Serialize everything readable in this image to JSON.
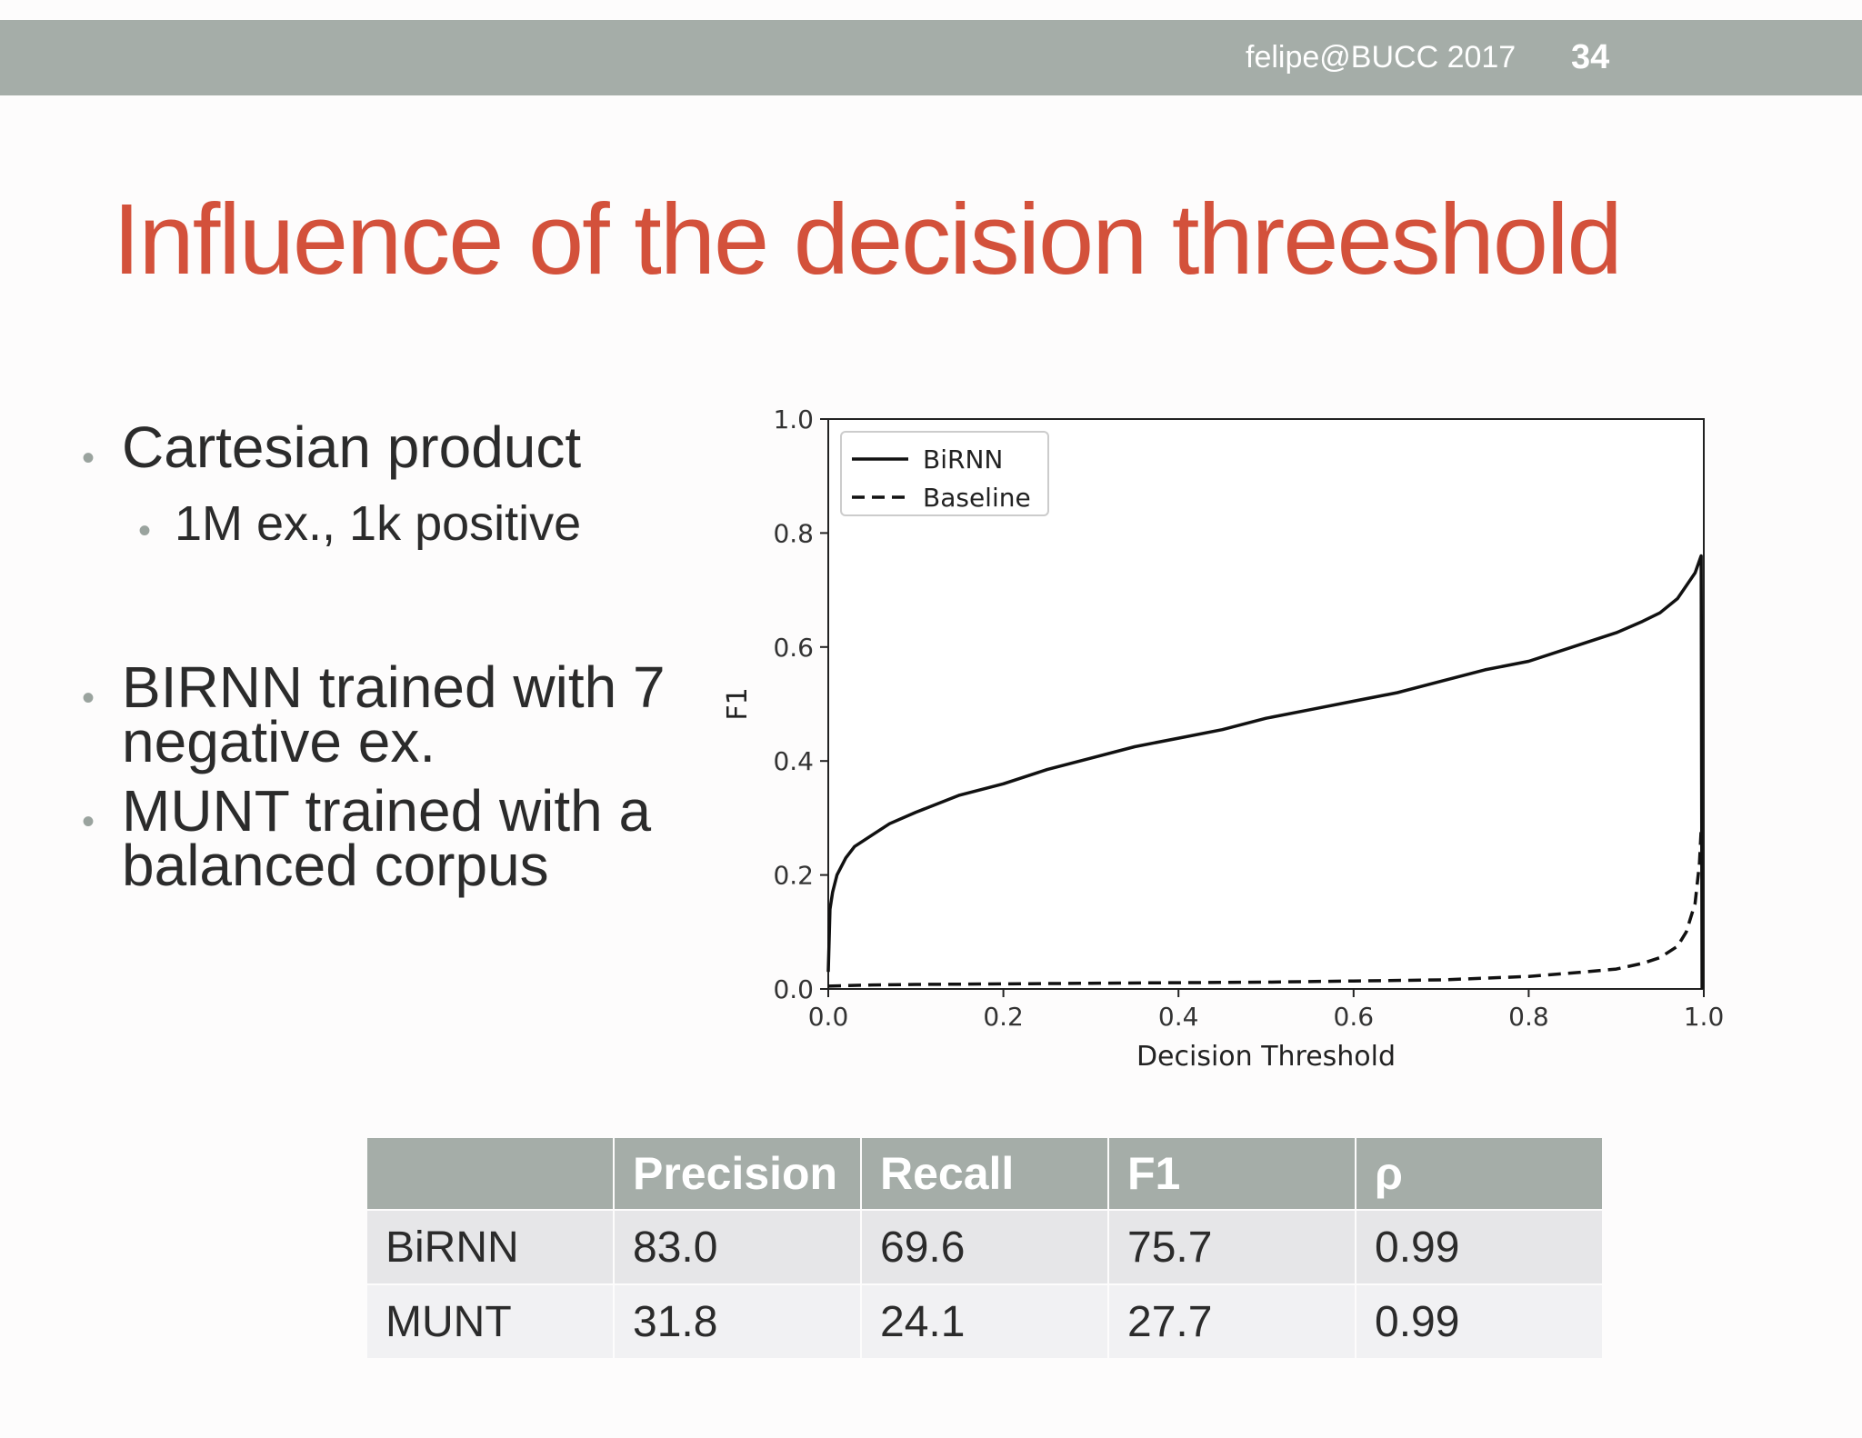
{
  "header": {
    "footer_text": "felipe@BUCC 2017",
    "page_number": "34",
    "bar_color": "#a5ada8"
  },
  "slide": {
    "title": "Influence of the decision threeshold",
    "title_color": "#d3513b"
  },
  "bullets": [
    {
      "text": "Cartesian product",
      "sub": [
        "1M ex., 1k positive"
      ]
    },
    {
      "lines": [
        "BIRNN trained with 7",
        "negative ex."
      ]
    },
    {
      "lines": [
        "MUNT trained with a",
        "balanced corpus"
      ]
    }
  ],
  "chart_data": {
    "type": "line",
    "xlabel": "Decision Threshold",
    "ylabel": "F1",
    "xlim": [
      0.0,
      1.0
    ],
    "ylim": [
      0.0,
      1.0
    ],
    "xticks": [
      "0.0",
      "0.2",
      "0.4",
      "0.6",
      "0.8",
      "1.0"
    ],
    "yticks": [
      "0.0",
      "0.2",
      "0.4",
      "0.6",
      "0.8",
      "1.0"
    ],
    "grid": false,
    "legend_position": "top-left",
    "series": [
      {
        "name": "BiRNN",
        "style": "solid",
        "x": [
          0.0,
          0.002,
          0.005,
          0.01,
          0.02,
          0.03,
          0.05,
          0.07,
          0.1,
          0.15,
          0.2,
          0.25,
          0.3,
          0.35,
          0.4,
          0.45,
          0.5,
          0.55,
          0.6,
          0.65,
          0.7,
          0.75,
          0.8,
          0.85,
          0.9,
          0.93,
          0.95,
          0.97,
          0.99,
          0.997,
          0.998
        ],
        "y": [
          0.03,
          0.14,
          0.17,
          0.2,
          0.23,
          0.25,
          0.27,
          0.29,
          0.31,
          0.34,
          0.36,
          0.385,
          0.405,
          0.425,
          0.44,
          0.455,
          0.475,
          0.49,
          0.505,
          0.52,
          0.54,
          0.56,
          0.575,
          0.6,
          0.625,
          0.645,
          0.66,
          0.685,
          0.73,
          0.76,
          0.0
        ]
      },
      {
        "name": "Baseline",
        "style": "dashed",
        "x": [
          0.0,
          0.05,
          0.1,
          0.2,
          0.3,
          0.4,
          0.5,
          0.6,
          0.7,
          0.8,
          0.85,
          0.9,
          0.93,
          0.95,
          0.97,
          0.98,
          0.99,
          0.995,
          0.997
        ],
        "y": [
          0.005,
          0.007,
          0.008,
          0.009,
          0.01,
          0.011,
          0.012,
          0.014,
          0.016,
          0.022,
          0.028,
          0.035,
          0.045,
          0.055,
          0.075,
          0.1,
          0.15,
          0.22,
          0.28
        ]
      }
    ]
  },
  "table": {
    "headers": [
      "",
      "Precision",
      "Recall",
      "F1",
      "ρ"
    ],
    "rows": [
      [
        "BiRNN",
        "83.0",
        "69.6",
        "75.7",
        "0.99"
      ],
      [
        "MUNT",
        "31.8",
        "24.1",
        "27.7",
        "0.99"
      ]
    ]
  }
}
